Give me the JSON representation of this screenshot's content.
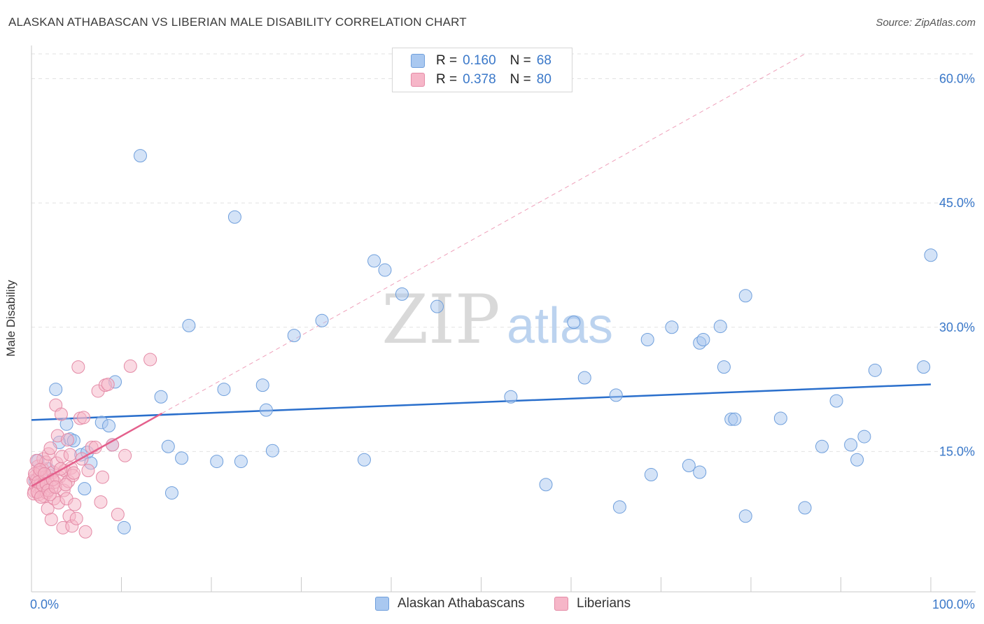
{
  "header": {
    "title": "ALASKAN ATHABASCAN VS LIBERIAN MALE DISABILITY CORRELATION CHART",
    "source": "Source: ZipAtlas.com"
  },
  "watermark": {
    "zip": "ZIP",
    "atlas": "atlas"
  },
  "legend": {
    "rows": [
      {
        "r_label": "R =",
        "r_value": "0.160",
        "n_label": "N =",
        "n_value": "68",
        "color": "#a9c8f0"
      },
      {
        "r_label": "R =",
        "r_value": "0.378",
        "n_label": "N =",
        "n_value": "80",
        "color": "#f6b6c8"
      }
    ]
  },
  "bottom_legend": [
    {
      "label": "Alaskan Athabascans",
      "color": "#a9c8f0"
    },
    {
      "label": "Liberians",
      "color": "#f6b6c8"
    }
  ],
  "colors": {
    "blue_fill": "#a9c8f0",
    "blue_stroke": "#6f9fdc",
    "blue_line": "#2a6fcc",
    "pink_fill": "#f6b6c8",
    "pink_stroke": "#e48aa6",
    "pink_line": "#e4608c",
    "tick_text": "#3a78c9",
    "grid": "#e2e2e2"
  },
  "chart_data": {
    "type": "scatter",
    "title": "ALASKAN ATHABASCAN VS LIBERIAN MALE DISABILITY CORRELATION CHART",
    "xlabel": "",
    "ylabel": "Male Disability",
    "xlim": [
      0,
      100
    ],
    "ylim": [
      0,
      63
    ],
    "x_tick_labels": [
      "0.0%",
      "100.0%"
    ],
    "y_ticks": [
      15,
      30,
      45,
      60
    ],
    "y_tick_labels": [
      "15.0%",
      "30.0%",
      "45.0%",
      "60.0%"
    ],
    "grid": true,
    "legend_position": "top-center",
    "series": [
      {
        "name": "Alaskan Athabascans",
        "r": 0.16,
        "n": 68,
        "trend": {
          "x": [
            0,
            100
          ],
          "y": [
            18.8,
            23.1
          ]
        },
        "points": [
          [
            0.7,
            13.9
          ],
          [
            1.0,
            11.8
          ],
          [
            1.3,
            12.4
          ],
          [
            1.8,
            12.9
          ],
          [
            2.7,
            22.5
          ],
          [
            3.1,
            16.1
          ],
          [
            3.9,
            18.3
          ],
          [
            4.3,
            16.5
          ],
          [
            4.7,
            16.3
          ],
          [
            5.5,
            14.6
          ],
          [
            5.9,
            10.5
          ],
          [
            6.2,
            14.9
          ],
          [
            6.6,
            13.6
          ],
          [
            7.8,
            18.5
          ],
          [
            8.6,
            18.1
          ],
          [
            9.0,
            15.8
          ],
          [
            9.3,
            23.4
          ],
          [
            10.3,
            5.8
          ],
          [
            12.1,
            50.7
          ],
          [
            14.4,
            21.6
          ],
          [
            15.2,
            15.6
          ],
          [
            15.6,
            10.0
          ],
          [
            16.7,
            14.2
          ],
          [
            17.5,
            30.2
          ],
          [
            20.6,
            13.8
          ],
          [
            21.4,
            22.5
          ],
          [
            22.6,
            43.3
          ],
          [
            23.3,
            13.8
          ],
          [
            25.7,
            23.0
          ],
          [
            26.1,
            20.0
          ],
          [
            26.8,
            15.1
          ],
          [
            29.2,
            29.0
          ],
          [
            32.3,
            30.8
          ],
          [
            37.0,
            14.0
          ],
          [
            38.1,
            38.0
          ],
          [
            39.3,
            36.9
          ],
          [
            41.2,
            34.0
          ],
          [
            45.1,
            32.5
          ],
          [
            53.3,
            21.6
          ],
          [
            57.2,
            11.0
          ],
          [
            60.3,
            30.6
          ],
          [
            61.5,
            23.9
          ],
          [
            65.0,
            21.8
          ],
          [
            65.4,
            8.3
          ],
          [
            68.5,
            28.5
          ],
          [
            68.9,
            12.2
          ],
          [
            71.2,
            30.0
          ],
          [
            73.1,
            13.3
          ],
          [
            74.3,
            12.5
          ],
          [
            74.3,
            28.1
          ],
          [
            74.7,
            28.5
          ],
          [
            76.6,
            30.1
          ],
          [
            77.0,
            25.2
          ],
          [
            77.8,
            18.9
          ],
          [
            78.2,
            18.9
          ],
          [
            79.4,
            33.8
          ],
          [
            79.4,
            7.2
          ],
          [
            83.3,
            19.0
          ],
          [
            86.0,
            8.2
          ],
          [
            87.9,
            15.6
          ],
          [
            89.5,
            21.1
          ],
          [
            91.1,
            15.8
          ],
          [
            91.8,
            14.0
          ],
          [
            92.6,
            16.8
          ],
          [
            93.8,
            24.8
          ],
          [
            99.2,
            25.2
          ],
          [
            100.0,
            38.7
          ],
          [
            0.4,
            11.5
          ]
        ]
      },
      {
        "name": "Liberians",
        "r": 0.378,
        "n": 80,
        "trend": {
          "x": [
            0,
            14.5
          ],
          "y": [
            10.8,
            19.6
          ]
        },
        "points": [
          [
            0.2,
            11.5
          ],
          [
            0.3,
            10.2
          ],
          [
            0.4,
            12.0
          ],
          [
            0.5,
            10.8
          ],
          [
            0.6,
            11.6
          ],
          [
            0.7,
            13.2
          ],
          [
            0.8,
            9.8
          ],
          [
            0.9,
            12.4
          ],
          [
            1.0,
            11.1
          ],
          [
            1.1,
            10.5
          ],
          [
            1.2,
            12.9
          ],
          [
            1.3,
            14.1
          ],
          [
            1.4,
            9.6
          ],
          [
            1.5,
            11.9
          ],
          [
            1.6,
            13.7
          ],
          [
            1.7,
            10.0
          ],
          [
            1.8,
            8.1
          ],
          [
            1.9,
            14.7
          ],
          [
            2.0,
            12.1
          ],
          [
            2.1,
            15.4
          ],
          [
            2.2,
            6.8
          ],
          [
            2.3,
            10.7
          ],
          [
            2.4,
            12.5
          ],
          [
            2.5,
            9.3
          ],
          [
            2.6,
            11.3
          ],
          [
            2.7,
            20.6
          ],
          [
            2.8,
            13.6
          ],
          [
            2.9,
            16.9
          ],
          [
            3.0,
            8.8
          ],
          [
            3.1,
            11.9
          ],
          [
            3.3,
            19.5
          ],
          [
            3.4,
            14.4
          ],
          [
            3.5,
            5.8
          ],
          [
            3.6,
            10.3
          ],
          [
            3.7,
            12.7
          ],
          [
            3.9,
            9.3
          ],
          [
            4.0,
            16.4
          ],
          [
            4.1,
            11.4
          ],
          [
            4.2,
            7.2
          ],
          [
            4.3,
            14.6
          ],
          [
            4.4,
            13.0
          ],
          [
            4.5,
            6.0
          ],
          [
            4.6,
            12.1
          ],
          [
            4.8,
            8.6
          ],
          [
            5.0,
            6.9
          ],
          [
            5.2,
            25.2
          ],
          [
            5.4,
            19.0
          ],
          [
            5.6,
            14.1
          ],
          [
            5.8,
            19.1
          ],
          [
            6.0,
            5.3
          ],
          [
            6.3,
            12.7
          ],
          [
            6.7,
            15.5
          ],
          [
            7.1,
            15.5
          ],
          [
            7.4,
            22.3
          ],
          [
            7.7,
            8.9
          ],
          [
            7.9,
            11.9
          ],
          [
            8.2,
            23.0
          ],
          [
            8.5,
            23.1
          ],
          [
            9.0,
            15.8
          ],
          [
            9.6,
            7.4
          ],
          [
            10.4,
            14.5
          ],
          [
            11.0,
            25.3
          ],
          [
            13.2,
            26.1
          ],
          [
            0.25,
            9.9
          ],
          [
            0.35,
            12.3
          ],
          [
            0.55,
            13.9
          ],
          [
            0.65,
            10.1
          ],
          [
            0.75,
            11.3
          ],
          [
            0.95,
            12.8
          ],
          [
            1.05,
            9.5
          ],
          [
            1.25,
            10.9
          ],
          [
            1.45,
            12.3
          ],
          [
            1.65,
            11.1
          ],
          [
            1.85,
            10.3
          ],
          [
            2.05,
            9.8
          ],
          [
            2.35,
            11.6
          ],
          [
            2.65,
            10.7
          ],
          [
            3.25,
            12.9
          ],
          [
            3.8,
            11.0
          ],
          [
            4.7,
            12.4
          ]
        ]
      }
    ]
  }
}
